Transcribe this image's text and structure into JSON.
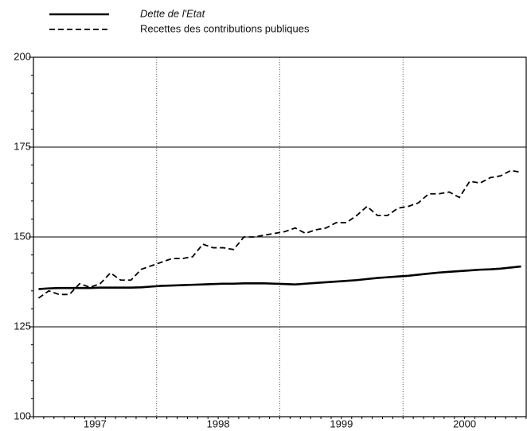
{
  "chart_data": {
    "type": "line",
    "categories": [
      null,
      null,
      null,
      null,
      null,
      null,
      "1997",
      null,
      null,
      null,
      null,
      null,
      null,
      null,
      null,
      null,
      null,
      null,
      "1998",
      null,
      null,
      null,
      null,
      null,
      null,
      null,
      null,
      null,
      null,
      null,
      "1999",
      null,
      null,
      null,
      null,
      null,
      null,
      null,
      null,
      null,
      null,
      null,
      "2000",
      null,
      null,
      null,
      null,
      null
    ],
    "series": [
      {
        "name": "Dette de l'Etat",
        "color": "#000000",
        "dash": false,
        "values": [
          135.5,
          135.7,
          135.8,
          135.8,
          135.8,
          135.8,
          135.9,
          135.9,
          135.9,
          135.9,
          136,
          136.2,
          136.4,
          136.5,
          136.6,
          136.7,
          136.8,
          136.9,
          137,
          137,
          137.1,
          137.1,
          137.1,
          137,
          136.9,
          136.8,
          137,
          137.2,
          137.4,
          137.6,
          137.8,
          138,
          138.3,
          138.6,
          138.8,
          139,
          139.2,
          139.5,
          139.8,
          140.1,
          140.3,
          140.5,
          140.7,
          140.9,
          141,
          141.2,
          141.5,
          141.8
        ]
      },
      {
        "name": "Recettes des contributions publiques",
        "color": "#000000",
        "dash": true,
        "values": [
          133,
          135,
          134,
          134,
          137,
          136,
          137,
          140,
          138,
          138,
          141,
          142,
          143,
          144,
          144,
          144.5,
          148,
          147,
          147,
          146.5,
          150,
          150,
          150.5,
          151,
          151.5,
          152.5,
          151,
          152,
          152.5,
          154,
          154,
          156,
          158.5,
          156,
          156,
          158,
          158.5,
          159.5,
          162,
          162,
          162.5,
          161,
          165.5,
          165,
          166.5,
          167,
          168.5,
          168
        ]
      }
    ],
    "ylim": [
      100,
      200
    ],
    "yticks": [
      100,
      125,
      150,
      175,
      200
    ],
    "grid": true
  }
}
